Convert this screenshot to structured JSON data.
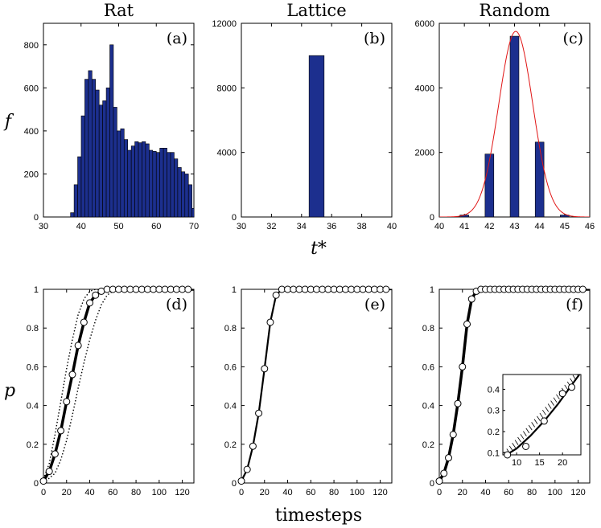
{
  "figure": {
    "xlabel_top": "t*",
    "ylabel_top": "f",
    "xlabel_bottom": "timesteps",
    "ylabel_bottom": "p",
    "colors": {
      "bar": "#1c2f8e",
      "fit": "#e01515",
      "line": "#000000",
      "marker_fill": "#ffffff"
    }
  },
  "chart_data": [
    {
      "id": "a",
      "type": "bar",
      "title": "Rat",
      "panel_label": "(a)",
      "xlim": [
        30,
        70
      ],
      "ylim": [
        0,
        900
      ],
      "xticks": [
        30,
        40,
        50,
        60,
        70
      ],
      "yticks": [
        0,
        200,
        400,
        600,
        800
      ],
      "bin_start": 37.2,
      "bin_width": 0.95,
      "values": [
        20,
        150,
        280,
        470,
        640,
        680,
        640,
        590,
        520,
        540,
        600,
        800,
        510,
        400,
        410,
        360,
        310,
        330,
        350,
        345,
        350,
        340,
        310,
        305,
        300,
        320,
        320,
        300,
        300,
        270,
        230,
        210,
        200,
        150,
        40,
        15
      ]
    },
    {
      "id": "b",
      "type": "bar",
      "title": "Lattice",
      "panel_label": "(b)",
      "xlim": [
        30,
        40
      ],
      "ylim": [
        0,
        12000
      ],
      "xticks": [
        30,
        32,
        34,
        36,
        38,
        40
      ],
      "yticks": [
        0,
        4000,
        8000,
        12000
      ],
      "bin_start": 34.5,
      "bin_width": 1,
      "values": [
        10000
      ]
    },
    {
      "id": "c",
      "type": "bar",
      "title": "Random",
      "panel_label": "(c)",
      "xlim": [
        40,
        46
      ],
      "ylim": [
        0,
        6000
      ],
      "xticks": [
        40,
        41,
        42,
        43,
        44,
        45,
        46
      ],
      "yticks": [
        0,
        2000,
        4000,
        6000
      ],
      "x": [
        41,
        42,
        43,
        44,
        45
      ],
      "bar_width": 0.35,
      "values": [
        60,
        1950,
        5600,
        2320,
        60
      ],
      "fit": {
        "type": "gaussian",
        "mean": 43.05,
        "sd": 0.68,
        "peak": 5750
      }
    },
    {
      "id": "d",
      "type": "line",
      "panel_label": "(d)",
      "xlim": [
        0,
        130
      ],
      "ylim": [
        0,
        1
      ],
      "xticks": [
        0,
        20,
        40,
        60,
        80,
        100,
        120
      ],
      "yticks": [
        0,
        0.2,
        0.4,
        0.6,
        0.8,
        1
      ],
      "markers": {
        "x": [
          0,
          5,
          10,
          15,
          20,
          25,
          30,
          35,
          40,
          45,
          50,
          55,
          60,
          65,
          70,
          75,
          80,
          85,
          90,
          95,
          100,
          105,
          110,
          115,
          120,
          125
        ],
        "y": [
          0.01,
          0.06,
          0.15,
          0.27,
          0.42,
          0.56,
          0.71,
          0.83,
          0.93,
          0.97,
          0.99,
          1,
          1,
          1,
          1,
          1,
          1,
          1,
          1,
          1,
          1,
          1,
          1,
          1,
          1,
          1
        ]
      },
      "series": [
        {
          "style": "solid-thick",
          "x": [
            0,
            5,
            10,
            15,
            20,
            25,
            30,
            35,
            40,
            45,
            50,
            55,
            60,
            130
          ],
          "y": [
            0.01,
            0.06,
            0.15,
            0.27,
            0.42,
            0.56,
            0.71,
            0.83,
            0.93,
            0.97,
            0.99,
            1,
            1,
            1
          ]
        },
        {
          "style": "dotted",
          "x": [
            0,
            5,
            10,
            15,
            20,
            25,
            30,
            35,
            40,
            45,
            50,
            130
          ],
          "y": [
            0.02,
            0.1,
            0.25,
            0.42,
            0.59,
            0.74,
            0.87,
            0.95,
            0.99,
            1,
            1,
            1
          ]
        },
        {
          "style": "dotted",
          "x": [
            0,
            10,
            15,
            20,
            25,
            30,
            35,
            40,
            45,
            50,
            55,
            60,
            65,
            130
          ],
          "y": [
            0,
            0.05,
            0.12,
            0.22,
            0.35,
            0.49,
            0.62,
            0.74,
            0.84,
            0.92,
            0.97,
            0.99,
            1,
            1
          ]
        }
      ]
    },
    {
      "id": "e",
      "type": "line",
      "panel_label": "(e)",
      "xlim": [
        0,
        130
      ],
      "ylim": [
        0,
        1
      ],
      "xticks": [
        0,
        20,
        40,
        60,
        80,
        100,
        120
      ],
      "yticks": [
        0,
        0.2,
        0.4,
        0.6,
        0.8,
        1
      ],
      "markers": {
        "x": [
          0,
          5,
          10,
          15,
          20,
          25,
          30,
          35,
          40,
          45,
          50,
          55,
          60,
          65,
          70,
          75,
          80,
          85,
          90,
          95,
          100,
          105,
          110,
          115,
          120,
          125
        ],
        "y": [
          0.01,
          0.07,
          0.19,
          0.36,
          0.59,
          0.83,
          0.97,
          1,
          1,
          1,
          1,
          1,
          1,
          1,
          1,
          1,
          1,
          1,
          1,
          1,
          1,
          1,
          1,
          1,
          1,
          1
        ]
      },
      "series": [
        {
          "style": "solid",
          "x": [
            0,
            5,
            10,
            15,
            20,
            25,
            30,
            35,
            130
          ],
          "y": [
            0.01,
            0.07,
            0.19,
            0.36,
            0.59,
            0.83,
            0.97,
            1,
            1
          ]
        }
      ]
    },
    {
      "id": "f",
      "type": "line",
      "panel_label": "(f)",
      "xlim": [
        0,
        130
      ],
      "ylim": [
        0,
        1
      ],
      "xticks": [
        0,
        20,
        40,
        60,
        80,
        100,
        120
      ],
      "yticks": [
        0,
        0.2,
        0.4,
        0.6,
        0.8,
        1
      ],
      "markers": {
        "x": [
          0,
          4,
          8,
          12,
          16,
          20,
          24,
          28,
          32,
          36,
          40,
          44,
          48,
          52,
          56,
          60,
          64,
          68,
          72,
          76,
          80,
          84,
          88,
          92,
          96,
          100,
          104,
          108,
          112,
          116,
          120,
          124
        ],
        "y": [
          0.01,
          0.05,
          0.13,
          0.25,
          0.41,
          0.6,
          0.82,
          0.95,
          0.99,
          1,
          1,
          1,
          1,
          1,
          1,
          1,
          1,
          1,
          1,
          1,
          1,
          1,
          1,
          1,
          1,
          1,
          1,
          1,
          1,
          1,
          1,
          1
        ]
      },
      "series": [
        {
          "style": "solid-thick",
          "x": [
            0,
            4,
            8,
            12,
            16,
            20,
            24,
            28,
            32,
            36,
            40,
            130
          ],
          "y": [
            0.01,
            0.05,
            0.13,
            0.25,
            0.41,
            0.6,
            0.82,
            0.95,
            0.99,
            1,
            1,
            1
          ]
        }
      ],
      "inset": {
        "xlim": [
          7,
          24
        ],
        "ylim": [
          0.09,
          0.47
        ],
        "xticks": [
          10,
          15,
          20
        ],
        "yticks": [
          0.1,
          0.2,
          0.3,
          0.4
        ],
        "line": {
          "x": [
            7,
            10,
            13,
            16,
            19,
            22,
            24
          ],
          "y": [
            0.08,
            0.12,
            0.18,
            0.25,
            0.33,
            0.42,
            0.48
          ]
        },
        "markers": {
          "x": [
            8,
            12,
            16,
            20,
            22
          ],
          "y": [
            0.09,
            0.13,
            0.25,
            0.38,
            0.41
          ]
        }
      }
    }
  ]
}
